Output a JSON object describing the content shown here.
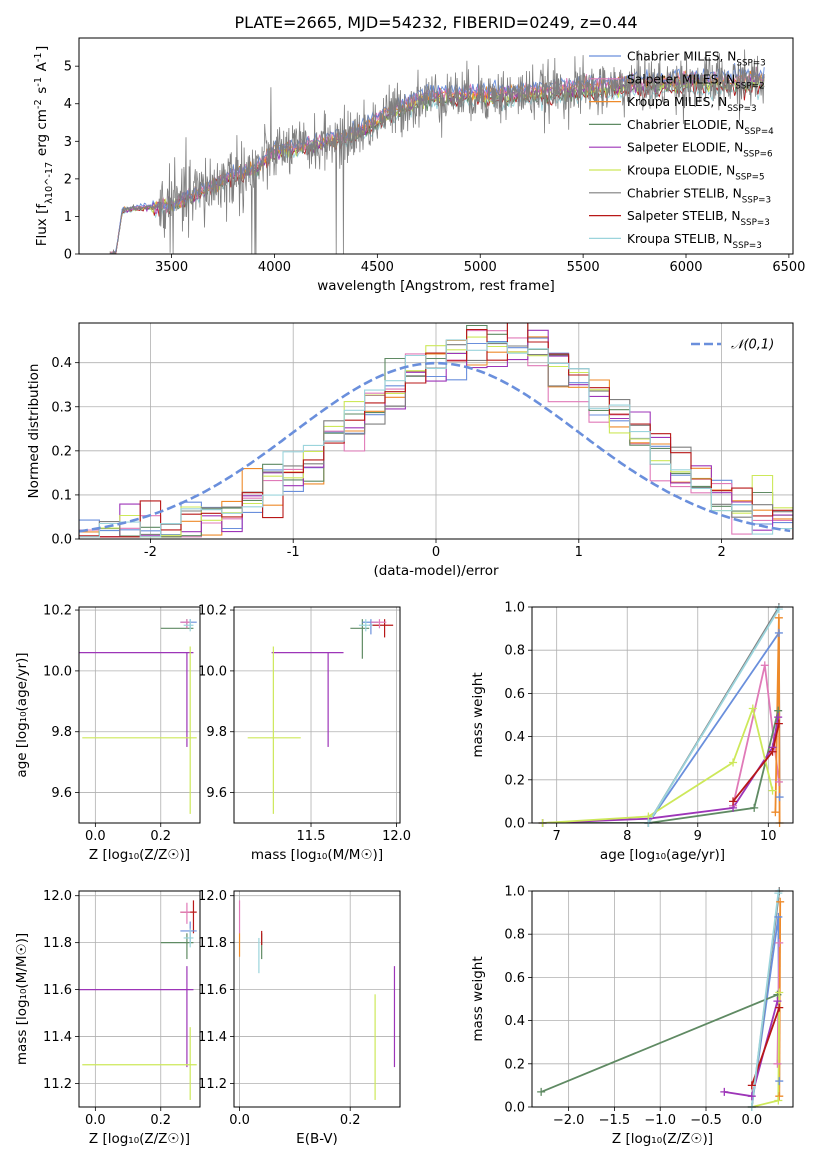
{
  "figure": {
    "title": "PLATE=2665, MJD=54232, FIBERID=0249, z=0.44"
  },
  "colors": {
    "chabrier_miles": "#6a8fdc",
    "salpeter_miles": "#e07ab8",
    "kroupa_miles": "#ee8a2a",
    "chabrier_elodie": "#5f8a63",
    "salpeter_elodie": "#9d35b8",
    "kroupa_elodie": "#cde85a",
    "chabrier_stelib": "#7f7f7f",
    "salpeter_stelib": "#b81818",
    "kroupa_stelib": "#9bd4dc",
    "gaussian": "#6a8fdc",
    "grid": "#b0b0b0"
  },
  "chart_data": [
    {
      "id": "spectrum",
      "type": "line",
      "xlabel": "wavelength [Angstrom, rest frame]",
      "ylabel": "Flux [f_λ10^-17 erg cm^-2 s^-1 A^-1]",
      "xlim": [
        3050,
        6520
      ],
      "ylim": [
        0,
        5.75
      ],
      "xticks": [
        3500,
        4000,
        4500,
        5000,
        5500,
        6000,
        6500
      ],
      "yticks": [
        0,
        1,
        2,
        3,
        4,
        5
      ],
      "grid": false,
      "legend_position": "top-right",
      "legend": [
        {
          "label": "Chabrier MILES, N_SSP=3",
          "color": "chabrier_miles"
        },
        {
          "label": "Salpeter MILES, N_SSP=2",
          "color": "salpeter_miles"
        },
        {
          "label": "Kroupa MILES, N_SSP=3",
          "color": "kroupa_miles"
        },
        {
          "label": "Chabrier ELODIE, N_SSP=4",
          "color": "chabrier_elodie"
        },
        {
          "label": "Salpeter ELODIE, N_SSP=6",
          "color": "salpeter_elodie"
        },
        {
          "label": "Kroupa ELODIE, N_SSP=5",
          "color": "kroupa_elodie"
        },
        {
          "label": "Chabrier STELIB, N_SSP=3",
          "color": "chabrier_stelib"
        },
        {
          "label": "Salpeter STELIB, N_SSP=3",
          "color": "salpeter_stelib"
        },
        {
          "label": "Kroupa STELIB, N_SSP=3",
          "color": "kroupa_stelib"
        }
      ],
      "continuum": {
        "x": [
          3200,
          3230,
          3260,
          3300,
          3400,
          3500,
          3600,
          3700,
          3800,
          3900,
          3960,
          4000,
          4100,
          4200,
          4300,
          4400,
          4500,
          4600,
          4700,
          4800,
          4900,
          5000,
          5100,
          5200,
          5300,
          5400,
          5500,
          5600,
          5700,
          5800,
          5900,
          6000,
          6100,
          6200,
          6300,
          6380
        ],
        "y": [
          0,
          0.05,
          1.15,
          1.2,
          1.25,
          1.3,
          1.55,
          1.8,
          2.1,
          2.2,
          2.55,
          2.75,
          2.8,
          2.9,
          3.05,
          3.2,
          3.55,
          3.85,
          4.1,
          4.2,
          4.2,
          4.25,
          4.2,
          4.25,
          4.3,
          4.35,
          4.4,
          4.4,
          4.5,
          4.5,
          4.5,
          4.6,
          4.55,
          4.55,
          4.6,
          4.6
        ]
      },
      "spread": 0.09,
      "data_noise": 0.45,
      "data_start": 3440,
      "dropouts": [
        3890,
        3905,
        3910,
        4300,
        4335
      ]
    },
    {
      "id": "residuals",
      "type": "step-histogram",
      "xlabel": "(data-model)/error",
      "ylabel": "Normed distribution",
      "xlim": [
        -2.5,
        2.5
      ],
      "ylim": [
        0,
        0.49
      ],
      "xticks": [
        -2,
        -1,
        0,
        1,
        2
      ],
      "yticks": [
        0,
        0.1,
        0.2,
        0.3,
        0.4
      ],
      "grid": true,
      "legend_position": "top-right",
      "legend": [
        {
          "label": "𝒩(0,1)",
          "color": "gaussian",
          "dashed": true
        }
      ],
      "bins": 35,
      "center": 0.38,
      "width": 0.93,
      "series": [
        {
          "color": "chabrier_miles",
          "shift": 0.0
        },
        {
          "color": "salpeter_miles",
          "shift": -0.05
        },
        {
          "color": "kroupa_miles",
          "shift": 0.03
        },
        {
          "color": "chabrier_elodie",
          "shift": 0.02
        },
        {
          "color": "salpeter_elodie",
          "shift": 0.05
        },
        {
          "color": "kroupa_elodie",
          "shift": -0.03
        },
        {
          "color": "chabrier_stelib",
          "shift": 0.01
        },
        {
          "color": "salpeter_stelib",
          "shift": 0.06
        },
        {
          "color": "kroupa_stelib",
          "shift": -0.02
        }
      ]
    },
    {
      "id": "age_vs_Z",
      "type": "errorbar",
      "xlabel": "Z [log10(Z/Z☉)]",
      "ylabel": "age [log10(age/yr)]",
      "xlim": [
        -0.05,
        0.32
      ],
      "ylim": [
        9.5,
        10.21
      ],
      "xticks": [
        0.0,
        0.2
      ],
      "yticks": [
        9.6,
        9.8,
        10.0,
        10.2
      ],
      "grid": true,
      "points": [
        {
          "color": "salpeter_elodie",
          "x": 0.28,
          "y": 10.06,
          "xerr": [
            0.34,
            0.02
          ],
          "yerr": [
            0.31,
            0.0
          ]
        },
        {
          "color": "kroupa_elodie",
          "x": 0.29,
          "y": 9.78,
          "xerr": [
            0.33,
            0.02
          ],
          "yerr": [
            0.25,
            0.3
          ]
        },
        {
          "color": "chabrier_elodie",
          "x": 0.28,
          "y": 10.14,
          "xerr": [
            0.08,
            0.02
          ],
          "yerr": [
            0.0,
            0.03
          ]
        },
        {
          "color": "chabrier_miles",
          "x": 0.29,
          "y": 10.16,
          "xerr": [
            0.03,
            0.02
          ],
          "yerr": [
            0.02,
            0.01
          ]
        },
        {
          "color": "salpeter_miles",
          "x": 0.28,
          "y": 10.16,
          "xerr": [
            0.02,
            0.01
          ],
          "yerr": [
            0.02,
            0.01
          ]
        },
        {
          "color": "kroupa_stelib",
          "x": 0.29,
          "y": 10.15,
          "xerr": [
            0.02,
            0.01
          ],
          "yerr": [
            0.02,
            0.02
          ]
        }
      ]
    },
    {
      "id": "age_vs_mass",
      "type": "errorbar",
      "xlabel": "mass [log10(M/M☉)]",
      "ylabel": "",
      "xlim": [
        11.05,
        12.02
      ],
      "ylim": [
        9.5,
        10.21
      ],
      "xticks": [
        11.5,
        12.0
      ],
      "yticks": [
        9.6,
        9.8,
        10.0,
        10.2
      ],
      "grid": true,
      "points": [
        {
          "color": "salpeter_elodie",
          "x": 11.6,
          "y": 10.06,
          "xerr": [
            0.33,
            0.09
          ],
          "yerr": [
            0.31,
            0.0
          ]
        },
        {
          "color": "kroupa_elodie",
          "x": 11.28,
          "y": 9.78,
          "xerr": [
            0.15,
            0.16
          ],
          "yerr": [
            0.25,
            0.3
          ]
        },
        {
          "color": "chabrier_elodie",
          "x": 11.8,
          "y": 10.14,
          "xerr": [
            0.07,
            0.04
          ],
          "yerr": [
            0.1,
            0.03
          ]
        },
        {
          "color": "salpeter_stelib",
          "x": 11.93,
          "y": 10.15,
          "xerr": [
            0.09,
            0.05
          ],
          "yerr": [
            0.04,
            0.02
          ]
        },
        {
          "color": "chabrier_miles",
          "x": 11.85,
          "y": 10.16,
          "xerr": [
            0.05,
            0.04
          ],
          "yerr": [
            0.04,
            0.01
          ]
        },
        {
          "color": "salpeter_miles",
          "x": 11.9,
          "y": 10.16,
          "xerr": [
            0.05,
            0.04
          ],
          "yerr": [
            0.02,
            0.01
          ]
        },
        {
          "color": "kroupa_stelib",
          "x": 11.82,
          "y": 10.15,
          "xerr": [
            0.04,
            0.04
          ],
          "yerr": [
            0.02,
            0.02
          ]
        }
      ]
    },
    {
      "id": "weight_vs_age",
      "type": "line",
      "xlabel": "age [log10(age/yr)]",
      "ylabel": "mass weight",
      "xlim": [
        6.65,
        10.35
      ],
      "ylim": [
        0,
        1.0
      ],
      "xticks": [
        7,
        8,
        9,
        10
      ],
      "yticks": [
        0.0,
        0.2,
        0.4,
        0.6,
        0.8,
        1.0
      ],
      "grid": true,
      "series": [
        {
          "color": "chabrier_miles",
          "x": [
            8.3,
            10.15,
            10.16
          ],
          "y": [
            0.0,
            0.88,
            0.12
          ]
        },
        {
          "color": "salpeter_miles",
          "x": [
            9.5,
            9.95,
            10.15
          ],
          "y": [
            0.08,
            0.73,
            0.19
          ]
        },
        {
          "color": "kroupa_miles",
          "x": [
            10.1,
            10.15,
            10.16
          ],
          "y": [
            0.05,
            0.95,
            0.0
          ]
        },
        {
          "color": "chabrier_elodie",
          "x": [
            6.8,
            8.3,
            9.8,
            10.14
          ],
          "y": [
            0.0,
            0.0,
            0.07,
            0.52
          ]
        },
        {
          "color": "salpeter_elodie",
          "x": [
            6.8,
            8.3,
            9.5,
            10.06,
            10.14
          ],
          "y": [
            0.0,
            0.02,
            0.07,
            0.35,
            0.49
          ]
        },
        {
          "color": "kroupa_elodie",
          "x": [
            6.8,
            8.3,
            9.5,
            9.78,
            10.06
          ],
          "y": [
            0.0,
            0.03,
            0.28,
            0.53,
            0.15
          ]
        },
        {
          "color": "chabrier_stelib",
          "x": [
            8.3,
            10.15
          ],
          "y": [
            0.0,
            1.0
          ]
        },
        {
          "color": "salpeter_stelib",
          "x": [
            9.5,
            10.06,
            10.15
          ],
          "y": [
            0.1,
            0.33,
            0.46
          ]
        },
        {
          "color": "kroupa_stelib",
          "x": [
            8.3,
            10.15
          ],
          "y": [
            0.0,
            0.99
          ]
        }
      ]
    },
    {
      "id": "mass_vs_Z",
      "type": "errorbar",
      "xlabel": "Z [log10(Z/Z☉)]",
      "ylabel": "mass [log10(M/M☉)]",
      "xlim": [
        -0.05,
        0.32
      ],
      "ylim": [
        11.1,
        12.02
      ],
      "xticks": [
        0.0,
        0.2
      ],
      "yticks": [
        11.2,
        11.4,
        11.6,
        11.8,
        12.0
      ],
      "grid": true,
      "points": [
        {
          "color": "salpeter_elodie",
          "x": 0.28,
          "y": 11.6,
          "xerr": [
            0.34,
            0.02
          ],
          "yerr": [
            0.33,
            0.1
          ]
        },
        {
          "color": "kroupa_elodie",
          "x": 0.29,
          "y": 11.28,
          "xerr": [
            0.33,
            0.02
          ],
          "yerr": [
            0.15,
            0.16
          ]
        },
        {
          "color": "chabrier_elodie",
          "x": 0.28,
          "y": 11.8,
          "xerr": [
            0.08,
            0.02
          ],
          "yerr": [
            0.07,
            0.04
          ]
        },
        {
          "color": "salpeter_stelib",
          "x": 0.3,
          "y": 11.93,
          "xerr": [
            0.04,
            0.01
          ],
          "yerr": [
            0.09,
            0.05
          ]
        },
        {
          "color": "chabrier_miles",
          "x": 0.29,
          "y": 11.85,
          "xerr": [
            0.03,
            0.02
          ],
          "yerr": [
            0.05,
            0.04
          ]
        },
        {
          "color": "salpeter_miles",
          "x": 0.28,
          "y": 11.93,
          "xerr": [
            0.02,
            0.01
          ],
          "yerr": [
            0.05,
            0.04
          ]
        },
        {
          "color": "kroupa_stelib",
          "x": 0.29,
          "y": 11.82,
          "xerr": [
            0.02,
            0.01
          ],
          "yerr": [
            0.04,
            0.04
          ]
        }
      ]
    },
    {
      "id": "mass_vs_ebv",
      "type": "errorbar",
      "xlabel": "E(B-V)",
      "ylabel": "",
      "xlim": [
        -0.01,
        0.29
      ],
      "ylim": [
        11.1,
        12.02
      ],
      "xticks": [
        0.0,
        0.2
      ],
      "yticks": [
        11.2,
        11.4,
        11.6,
        11.8,
        12.0
      ],
      "grid": true,
      "points": [
        {
          "color": "salpeter_elodie",
          "x": 0.28,
          "y": 11.6,
          "xerr": [
            0.0,
            0.0
          ],
          "yerr": [
            0.33,
            0.1
          ]
        },
        {
          "color": "kroupa_elodie",
          "x": 0.245,
          "y": 11.28,
          "xerr": [
            0.0,
            0.0
          ],
          "yerr": [
            0.15,
            0.3
          ]
        },
        {
          "color": "chabrier_elodie",
          "x": 0.04,
          "y": 11.8,
          "xerr": [
            0.0,
            0.0
          ],
          "yerr": [
            0.07,
            0.04
          ]
        },
        {
          "color": "salpeter_stelib",
          "x": 0.04,
          "y": 11.82,
          "xerr": [
            0.0,
            0.0
          ],
          "yerr": [
            0.03,
            0.03
          ]
        },
        {
          "color": "kroupa_stelib",
          "x": 0.035,
          "y": 11.75,
          "xerr": [
            0.0,
            0.0
          ],
          "yerr": [
            0.08,
            0.07
          ]
        },
        {
          "color": "salpeter_miles",
          "x": 0.0,
          "y": 11.9,
          "xerr": [
            0.0,
            0.0
          ],
          "yerr": [
            0.06,
            0.08
          ]
        },
        {
          "color": "kroupa_miles",
          "x": 0.0,
          "y": 11.78,
          "xerr": [
            0.0,
            0.0
          ],
          "yerr": [
            0.04,
            0.06
          ]
        }
      ]
    },
    {
      "id": "weight_vs_Z",
      "type": "line",
      "xlabel": "Z [log10(Z/Z☉)]",
      "ylabel": "mass weight",
      "xlim": [
        -2.4,
        0.45
      ],
      "ylim": [
        0,
        1.0
      ],
      "xticks": [
        -2.0,
        -1.5,
        -1.0,
        -0.5,
        0.0
      ],
      "yticks": [
        0.0,
        0.2,
        0.4,
        0.6,
        0.8,
        1.0
      ],
      "grid": true,
      "series": [
        {
          "color": "chabrier_miles",
          "x": [
            0.0,
            0.29,
            0.3
          ],
          "y": [
            0.0,
            0.88,
            0.12
          ]
        },
        {
          "color": "salpeter_miles",
          "x": [
            0.28,
            0.3
          ],
          "y": [
            0.2,
            0.76
          ]
        },
        {
          "color": "kroupa_miles",
          "x": [
            0.3,
            0.31
          ],
          "y": [
            0.05,
            0.95
          ]
        },
        {
          "color": "chabrier_elodie",
          "x": [
            -2.3,
            0.28
          ],
          "y": [
            0.07,
            0.52
          ]
        },
        {
          "color": "salpeter_elodie",
          "x": [
            -0.3,
            0.0,
            0.28
          ],
          "y": [
            0.07,
            0.05,
            0.49
          ]
        },
        {
          "color": "kroupa_elodie",
          "x": [
            0.0,
            0.29,
            0.3
          ],
          "y": [
            0.0,
            0.03,
            0.53
          ]
        },
        {
          "color": "chabrier_stelib",
          "x": [
            0.0,
            0.3
          ],
          "y": [
            0.0,
            1.0
          ]
        },
        {
          "color": "salpeter_stelib",
          "x": [
            0.0,
            0.3
          ],
          "y": [
            0.1,
            0.46
          ]
        },
        {
          "color": "kroupa_stelib",
          "x": [
            0.0,
            0.29
          ],
          "y": [
            0.0,
            0.99
          ]
        }
      ]
    }
  ]
}
